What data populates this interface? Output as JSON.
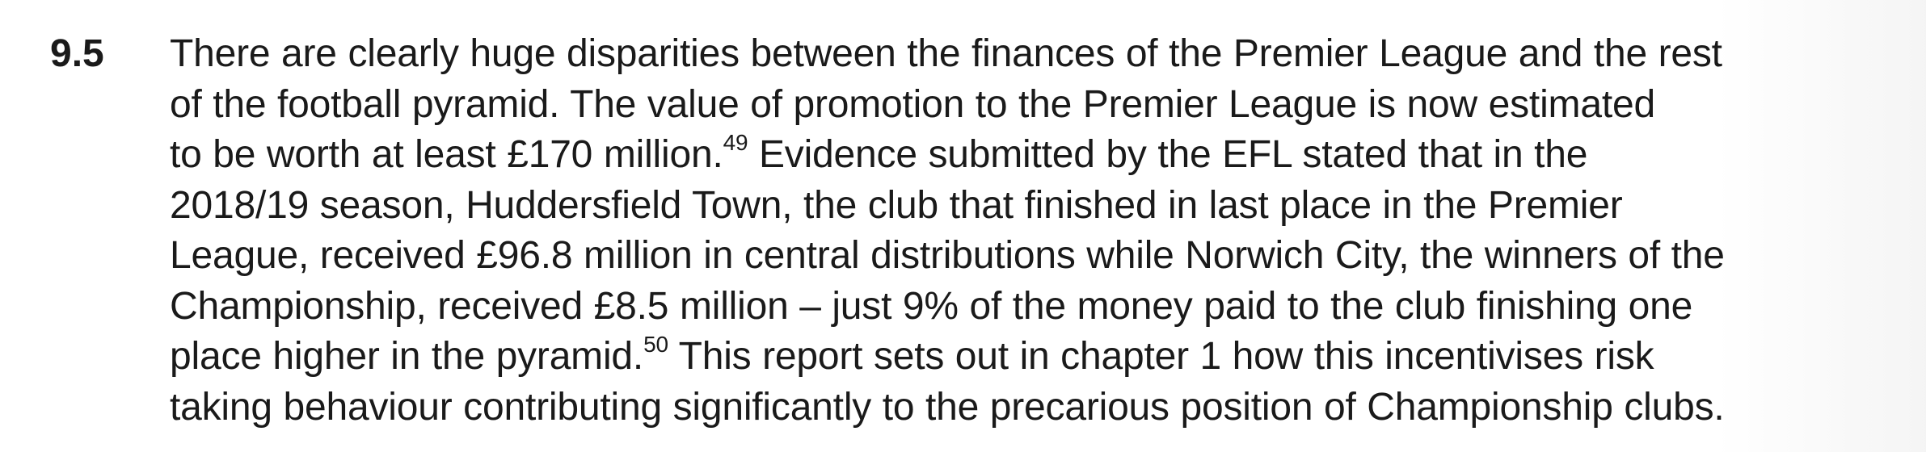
{
  "paragraph": {
    "number": "9.5",
    "lines": [
      "There are clearly huge disparities between the finances of the Premier League and the rest",
      "of the football pyramid. The value of promotion to the Premier League is now estimated",
      "to be worth at least £170 million.",
      " Evidence submitted by the EFL stated that in the",
      "2018/19 season, Huddersfield Town, the club that finished in last place in the Premier",
      "League, received £96.8 million in central distributions while Norwich City, the winners of the",
      "Championship, received £8.5 million – just 9% of the money paid to the club finishing one",
      "place higher in the pyramid.",
      " This report sets out in chapter 1 how this incentivises risk",
      "taking behaviour contributing significantly to the precarious position of Championship clubs."
    ],
    "footnotes": [
      "49",
      "50"
    ]
  }
}
